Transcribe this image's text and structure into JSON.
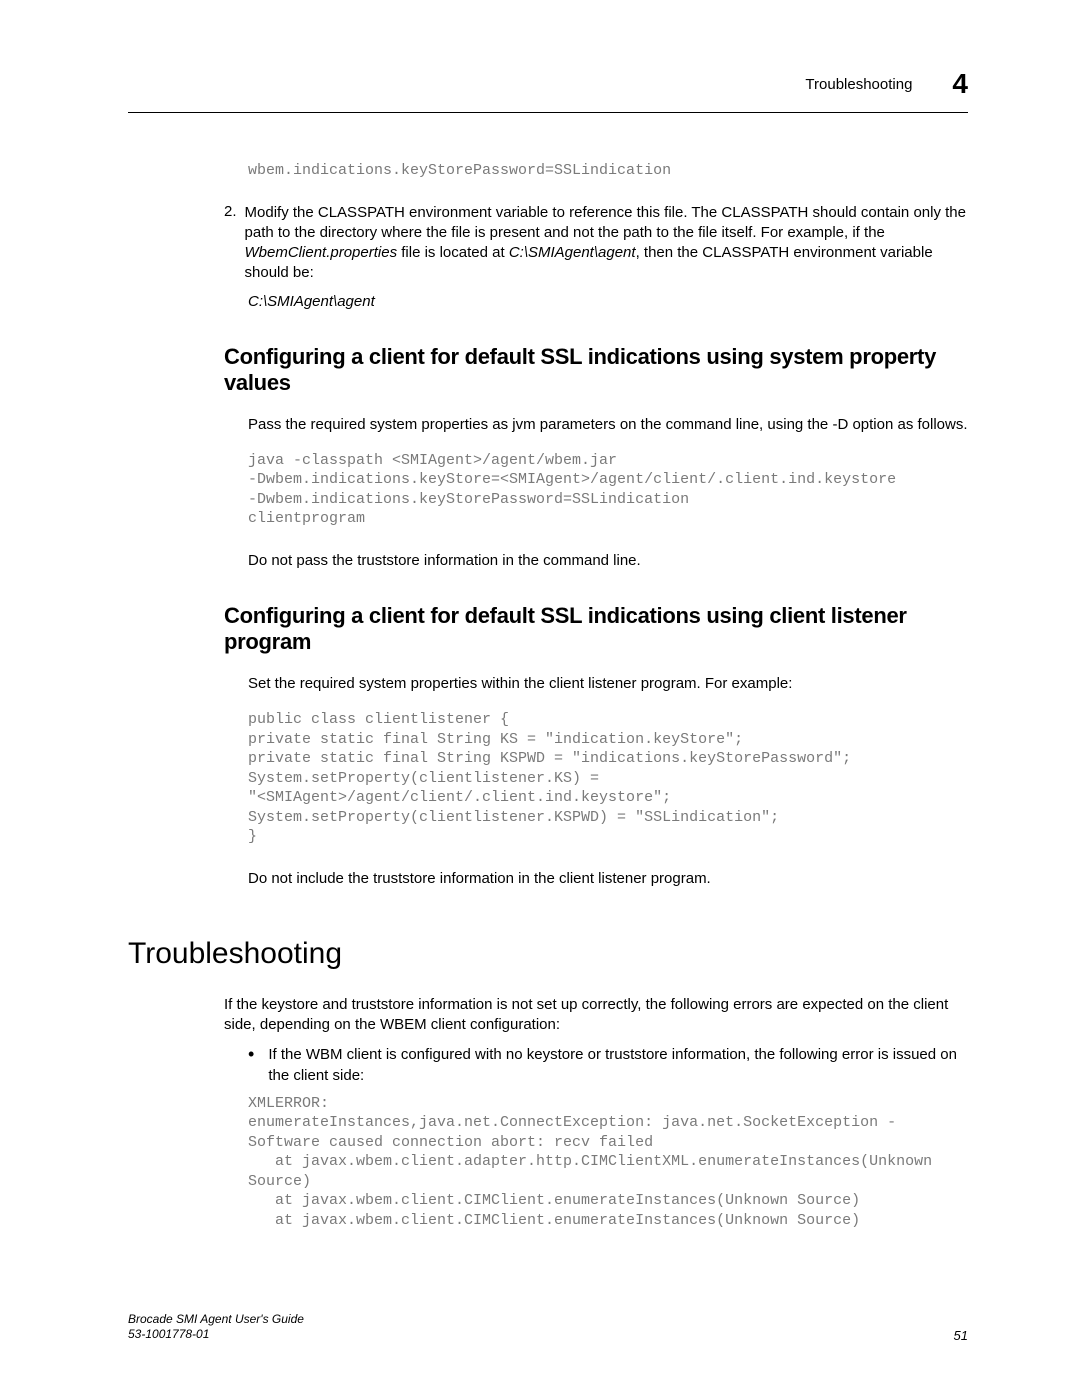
{
  "header": {
    "title": "Troubleshooting",
    "chapter_num": "4"
  },
  "code1": "wbem.indications.keyStorePassword=SSLindication",
  "step2": {
    "num": "2.",
    "text_part1": "Modify the CLASSPATH environment variable to reference this file. The CLASSPATH should contain only the path to the directory where the file is present and not the path to the file itself. For example, if the ",
    "italic1": "WbemClient.properties",
    "text_part2": " file is located at ",
    "italic2": "C:\\SMIAgent\\agent",
    "text_part3": ", then the CLASSPATH environment variable should be:",
    "path": "C:\\SMIAgent\\agent"
  },
  "section1": {
    "heading": "Configuring a client for default SSL indications using system property values",
    "para1": "Pass the required system properties as jvm parameters on the command line, using the -D option as follows.",
    "code": "java -classpath <SMIAgent>/agent/wbem.jar\n-Dwbem.indications.keyStore=<SMIAgent>/agent/client/.client.ind.keystore\n-Dwbem.indications.keyStorePassword=SSLindication\nclientprogram",
    "para2": "Do not pass the truststore information in the command line."
  },
  "section2": {
    "heading": "Configuring a client for default SSL indications using client listener program",
    "para1": "Set the required system properties within the client listener program. For example:",
    "code": "public class clientlistener {\nprivate static final String KS = \"indication.keyStore\";\nprivate static final String KSPWD = \"indications.keyStorePassword\";\nSystem.setProperty(clientlistener.KS) =\n\"<SMIAgent>/agent/client/.client.ind.keystore\";\nSystem.setProperty(clientlistener.KSPWD) = \"SSLindication\";\n}",
    "para2": "Do not include the truststore information in the client listener program."
  },
  "section3": {
    "heading": "Troubleshooting",
    "para1": "If the keystore and truststore information is not set up correctly, the following errors are expected on the client side, depending on the WBEM client configuration:",
    "bullet1": "If the WBM client is configured with no keystore or truststore information, the following error is issued on the client side:",
    "code": "XMLERROR:\nenumerateInstances,java.net.ConnectException: java.net.SocketException -\nSoftware caused connection abort: recv failed\n   at javax.wbem.client.adapter.http.CIMClientXML.enumerateInstances(Unknown\nSource)\n   at javax.wbem.client.CIMClient.enumerateInstances(Unknown Source)\n   at javax.wbem.client.CIMClient.enumerateInstances(Unknown Source)"
  },
  "footer": {
    "line1": "Brocade SMI Agent User's Guide",
    "line2": "53-1001778-01",
    "page": "51"
  }
}
